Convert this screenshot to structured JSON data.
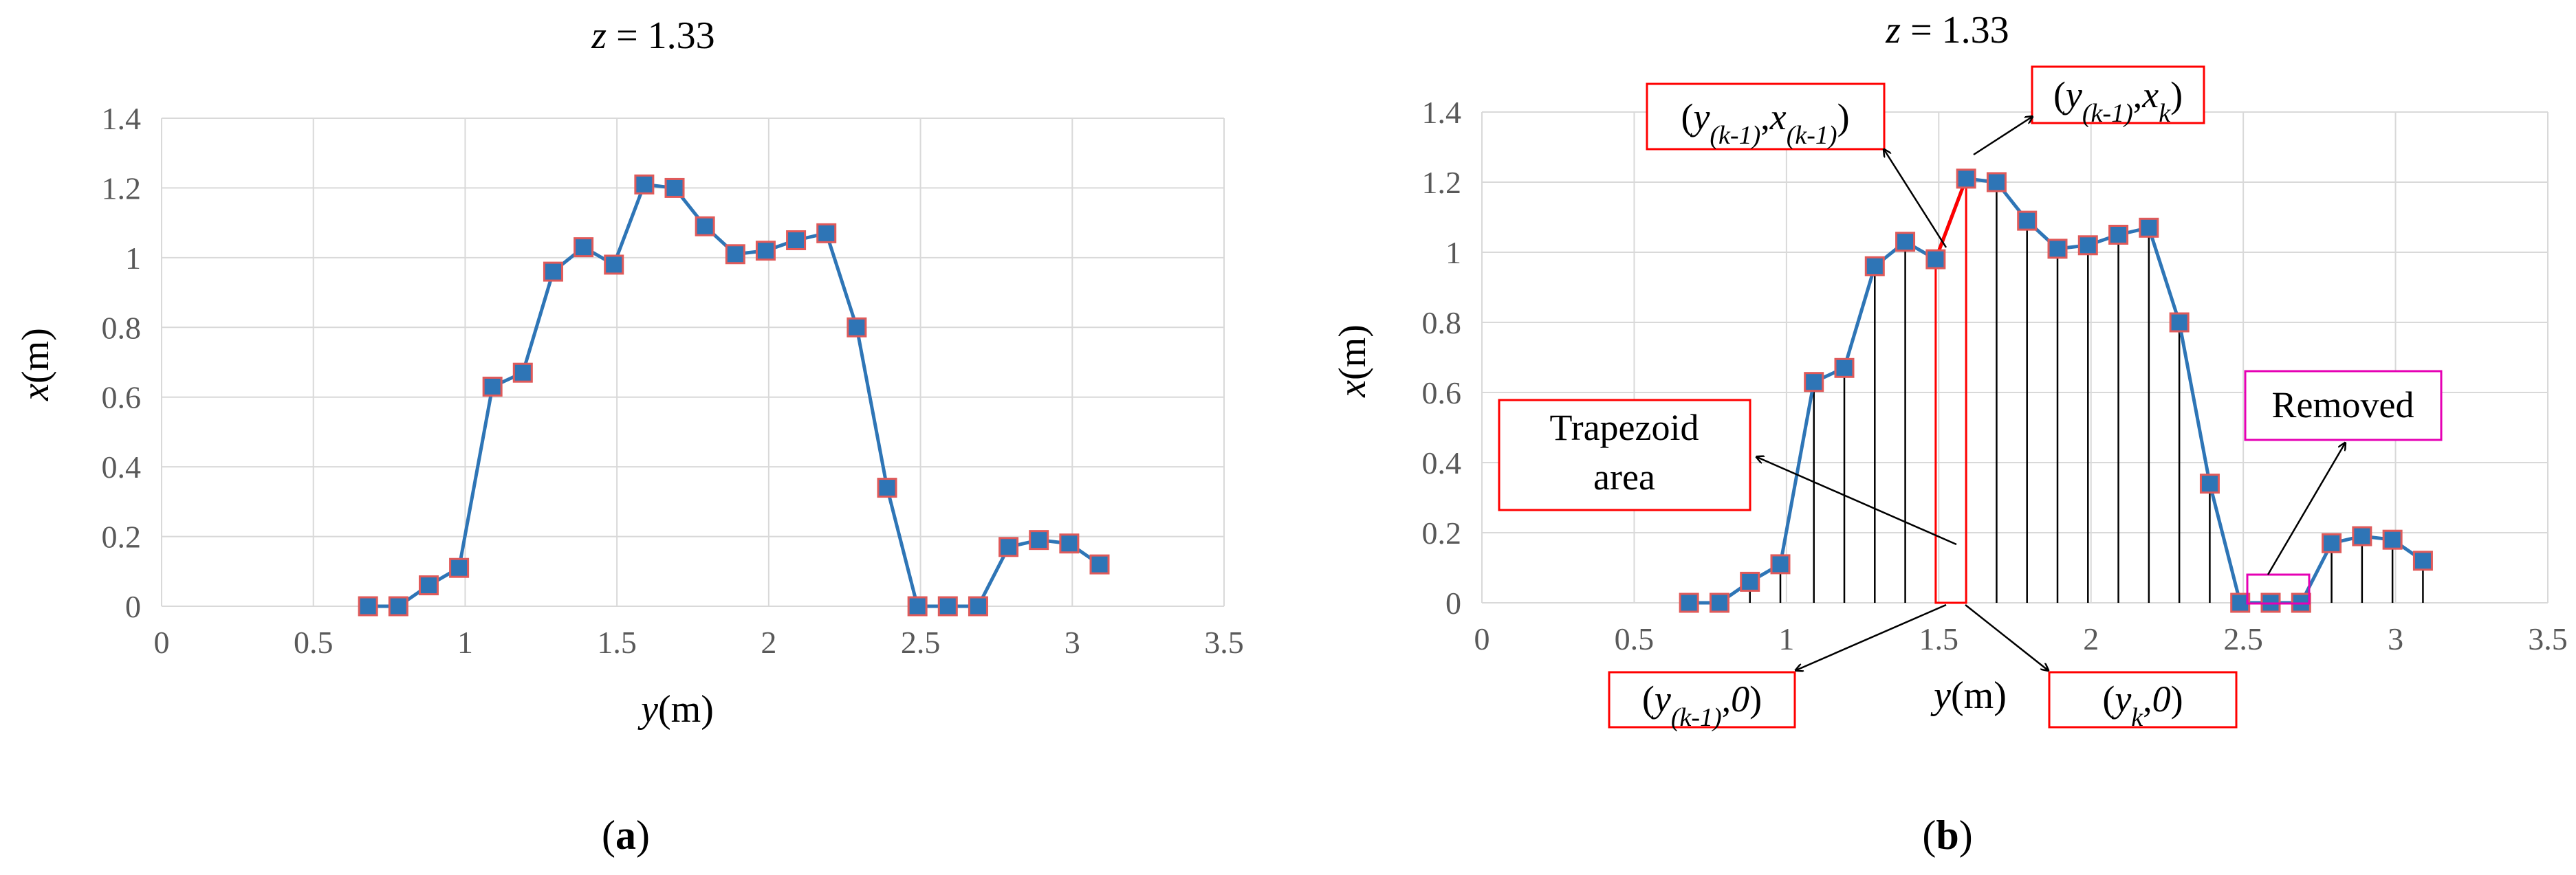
{
  "chart_data": [
    {
      "panel": "(a)",
      "type": "line",
      "title": "z = 1.33",
      "xlabel": "y(m)",
      "ylabel": "x(m)",
      "xlim": [
        0,
        3.5
      ],
      "ylim": [
        0,
        1.4
      ],
      "xticks": [
        "0",
        "0.5",
        "1",
        "1.5",
        "2",
        "2.5",
        "3",
        "3.5"
      ],
      "yticks": [
        "0",
        "0.2",
        "0.4",
        "0.6",
        "0.8",
        "1",
        "1.2",
        "1.4"
      ],
      "grid": true,
      "x": [
        0.68,
        0.78,
        0.88,
        0.98,
        1.09,
        1.19,
        1.29,
        1.39,
        1.49,
        1.59,
        1.69,
        1.79,
        1.89,
        1.99,
        2.09,
        2.19,
        2.29,
        2.39,
        2.49,
        2.59,
        2.69,
        2.79,
        2.89,
        2.99,
        3.09,
        3.19
      ],
      "series": [
        {
          "values": [
            0,
            0,
            0.06,
            0.11,
            0.63,
            0.67,
            0.96,
            1.03,
            0.98,
            1.21,
            1.2,
            1.09,
            1.01,
            1.02,
            1.05,
            1.07,
            0.8,
            0.34,
            0,
            0,
            0,
            0.17,
            0.19,
            0.18,
            0.12,
            null
          ]
        }
      ]
    },
    {
      "panel": "(b)",
      "type": "line",
      "title": "z = 1.33",
      "xlabel": "y(m)",
      "ylabel": "x(m)",
      "xlim": [
        0,
        3.5
      ],
      "ylim": [
        0,
        1.4
      ],
      "xticks": [
        "0",
        "0.5",
        "1",
        "1.5",
        "2",
        "2.5",
        "3",
        "3.5"
      ],
      "yticks": [
        "0",
        "0.2",
        "0.4",
        "0.6",
        "0.8",
        "1",
        "1.2",
        "1.4"
      ],
      "grid": true,
      "x": [
        0.68,
        0.78,
        0.88,
        0.98,
        1.09,
        1.19,
        1.29,
        1.39,
        1.49,
        1.59,
        1.69,
        1.79,
        1.89,
        1.99,
        2.09,
        2.19,
        2.29,
        2.39,
        2.49,
        2.59,
        2.69,
        2.79,
        2.89,
        2.99,
        3.09,
        3.19
      ],
      "series": [
        {
          "values": [
            0,
            0,
            0.06,
            0.11,
            0.63,
            0.67,
            0.96,
            1.03,
            0.98,
            1.21,
            1.2,
            1.09,
            1.01,
            1.02,
            1.05,
            1.07,
            0.8,
            0.34,
            0,
            0,
            0,
            0.17,
            0.19,
            0.18,
            0.12,
            null
          ]
        }
      ],
      "annotations": {
        "top_left_point": "(y(k-1),x(k-1))",
        "top_right_point": "(y(k-1),xk)",
        "bottom_left_point": "(y(k-1),0)",
        "bottom_right_point": "(yk,0)",
        "trapezoid_line1": "Trapezoid",
        "trapezoid_line2": "area",
        "removed": "Removed"
      }
    }
  ],
  "panel_labels": [
    "(a)",
    "(b)"
  ],
  "colors": {
    "line": "#2e75b6",
    "marker_fill": "#2e75b6",
    "marker_edge": "#e05a5a",
    "highlight": "#ff0000",
    "removed_box": "#e600b4",
    "grid": "#d9d9d9"
  }
}
